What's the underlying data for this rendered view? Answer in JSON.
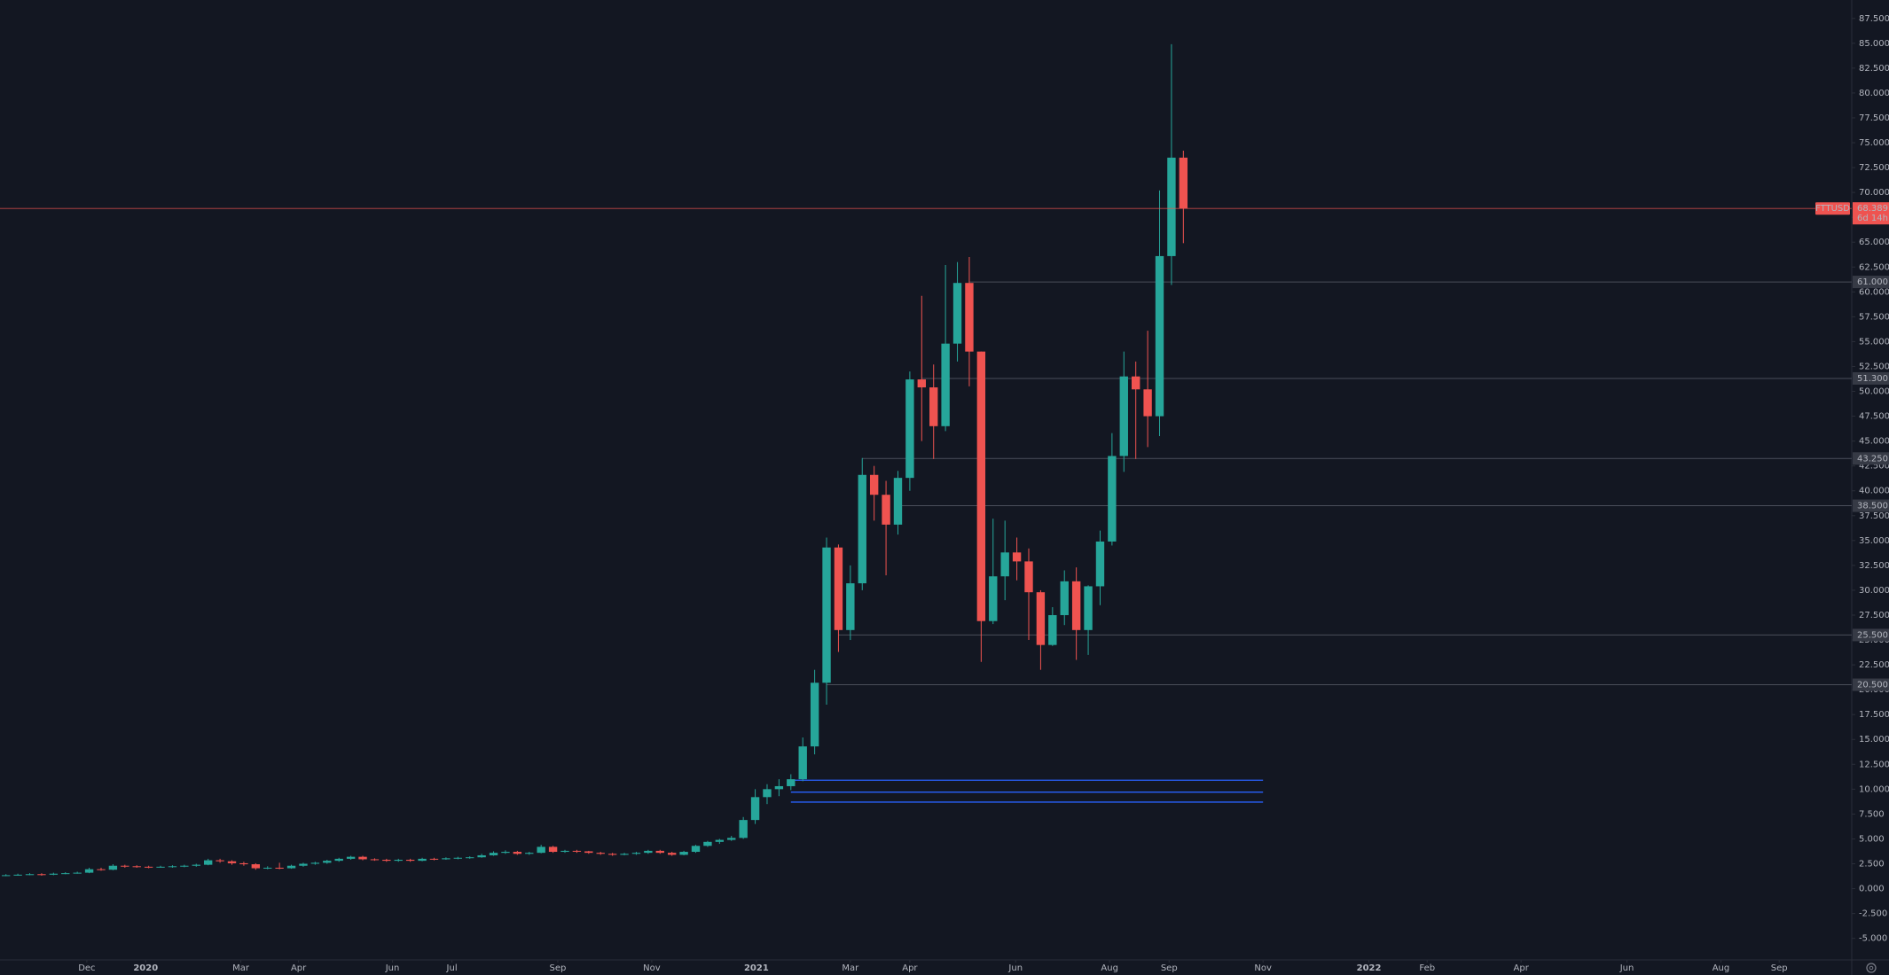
{
  "chart_data": {
    "type": "candlestick",
    "symbol": "FTTUSD",
    "x": [
      0,
      1,
      2,
      3,
      4,
      5,
      6,
      7,
      8,
      9,
      10,
      11,
      12,
      13,
      14,
      15,
      16,
      17,
      18,
      19,
      20,
      21,
      22,
      23,
      24,
      25,
      26,
      27,
      28,
      29,
      30,
      31,
      32,
      33,
      34,
      35,
      36,
      37,
      38,
      39,
      40,
      41,
      42,
      43,
      44,
      45,
      46,
      47,
      48,
      49,
      50,
      51,
      52,
      53,
      54,
      55,
      56,
      57,
      58,
      59,
      60,
      61,
      62,
      63,
      64,
      65,
      66,
      67,
      68,
      69,
      70,
      71,
      72,
      73,
      74,
      75,
      76,
      77,
      78,
      79,
      80,
      81,
      82,
      83,
      84,
      85,
      86,
      87,
      88,
      89,
      90,
      91,
      92,
      93,
      94,
      95,
      96,
      97,
      98,
      99
    ],
    "open": [
      1.3,
      1.35,
      1.4,
      1.45,
      1.4,
      1.5,
      1.55,
      1.6,
      1.95,
      1.9,
      2.3,
      2.25,
      2.2,
      2.15,
      2.2,
      2.25,
      2.3,
      2.4,
      2.85,
      2.75,
      2.55,
      2.45,
      2.05,
      2.1,
      2.05,
      2.3,
      2.5,
      2.6,
      2.8,
      3.0,
      3.2,
      2.95,
      2.9,
      2.8,
      2.9,
      2.8,
      3.0,
      2.95,
      3.05,
      3.1,
      3.15,
      3.35,
      3.6,
      3.7,
      3.5,
      3.6,
      4.2,
      3.7,
      3.8,
      3.75,
      3.6,
      3.5,
      3.4,
      3.5,
      3.6,
      3.8,
      3.6,
      3.4,
      3.7,
      4.3,
      4.7,
      4.9,
      5.1,
      6.9,
      9.2,
      10.0,
      10.3,
      11.0,
      14.3,
      20.7,
      34.3,
      26.0,
      30.7,
      41.6,
      39.6,
      36.6,
      41.3,
      51.2,
      50.4,
      46.5,
      54.8,
      60.9,
      54.0,
      26.9,
      31.4,
      33.8,
      32.9,
      29.8,
      24.5,
      27.5,
      30.9,
      26.0,
      30.4,
      34.9,
      43.5,
      51.5,
      50.2,
      47.5,
      63.6,
      73.5
    ],
    "high": [
      1.45,
      1.5,
      1.55,
      1.55,
      1.6,
      1.65,
      1.7,
      2.1,
      2.1,
      2.45,
      2.4,
      2.35,
      2.3,
      2.3,
      2.35,
      2.4,
      2.5,
      3.0,
      3.0,
      2.85,
      2.7,
      2.55,
      2.25,
      2.6,
      2.4,
      2.6,
      2.7,
      2.9,
      3.1,
      3.3,
      3.3,
      3.05,
      3.0,
      3.0,
      3.0,
      3.1,
      3.1,
      3.15,
      3.2,
      3.25,
      3.5,
      3.75,
      3.85,
      3.8,
      3.7,
      4.4,
      4.3,
      3.9,
      3.9,
      3.8,
      3.7,
      3.6,
      3.6,
      3.7,
      3.9,
      3.9,
      3.7,
      3.8,
      4.4,
      4.8,
      5.0,
      5.3,
      7.2,
      10.0,
      10.5,
      11.0,
      11.5,
      15.2,
      22.0,
      35.3,
      34.6,
      32.5,
      43.3,
      42.5,
      41.0,
      42.0,
      52.0,
      59.6,
      52.7,
      62.7,
      63.0,
      63.5,
      54.0,
      37.2,
      37.0,
      35.3,
      34.2,
      30.0,
      28.3,
      32.0,
      32.3,
      30.5,
      36.0,
      45.8,
      54.0,
      53.0,
      56.1,
      70.2,
      84.9,
      74.2
    ],
    "low": [
      1.25,
      1.3,
      1.35,
      1.3,
      1.35,
      1.45,
      1.5,
      1.55,
      1.8,
      1.85,
      2.1,
      2.1,
      2.05,
      2.1,
      2.1,
      2.15,
      2.2,
      2.35,
      2.6,
      2.4,
      2.3,
      1.9,
      1.95,
      1.95,
      2.0,
      2.2,
      2.4,
      2.5,
      2.7,
      2.9,
      2.85,
      2.8,
      2.7,
      2.7,
      2.7,
      2.75,
      2.85,
      2.9,
      2.95,
      3.0,
      3.1,
      3.3,
      3.5,
      3.4,
      3.4,
      3.55,
      3.6,
      3.6,
      3.6,
      3.5,
      3.4,
      3.3,
      3.35,
      3.4,
      3.5,
      3.5,
      3.3,
      3.35,
      3.6,
      4.2,
      4.5,
      4.8,
      5.0,
      6.5,
      8.5,
      9.3,
      9.9,
      10.8,
      13.5,
      18.5,
      23.8,
      25.0,
      30.0,
      37.0,
      31.5,
      35.6,
      40.0,
      45.0,
      43.2,
      46.0,
      53.0,
      50.5,
      22.8,
      26.6,
      29.0,
      31.0,
      25.0,
      22.0,
      24.4,
      26.5,
      23.0,
      23.5,
      28.5,
      34.5,
      41.9,
      43.2,
      44.4,
      45.5,
      60.7,
      64.9
    ],
    "close": [
      1.35,
      1.4,
      1.45,
      1.4,
      1.5,
      1.55,
      1.6,
      1.95,
      1.9,
      2.3,
      2.25,
      2.2,
      2.15,
      2.2,
      2.25,
      2.3,
      2.4,
      2.85,
      2.75,
      2.55,
      2.45,
      2.05,
      2.1,
      2.05,
      2.3,
      2.5,
      2.6,
      2.8,
      3.0,
      3.2,
      2.95,
      2.9,
      2.8,
      2.9,
      2.8,
      3.0,
      2.95,
      3.05,
      3.1,
      3.15,
      3.35,
      3.6,
      3.7,
      3.5,
      3.6,
      4.2,
      3.7,
      3.8,
      3.75,
      3.6,
      3.5,
      3.4,
      3.5,
      3.6,
      3.8,
      3.6,
      3.4,
      3.7,
      4.3,
      4.7,
      4.9,
      5.1,
      6.9,
      9.2,
      10.0,
      10.3,
      11.0,
      14.3,
      20.7,
      34.3,
      26.0,
      30.7,
      41.6,
      39.6,
      36.6,
      41.3,
      51.2,
      50.4,
      46.5,
      54.8,
      60.9,
      54.0,
      26.9,
      31.4,
      33.8,
      32.9,
      29.8,
      24.5,
      27.5,
      30.9,
      26.0,
      30.4,
      34.9,
      43.5,
      51.5,
      50.2,
      47.5,
      63.6,
      73.5,
      68.4
    ],
    "up_color": "#26a69a",
    "down_color": "#ef5350",
    "xlim": [
      -0.5,
      155.2
    ],
    "xticks": [
      {
        "value": 6.8,
        "label": "Dec"
      },
      {
        "value": 11.75,
        "label": "2020"
      },
      {
        "value": 19.75,
        "label": "Mar"
      },
      {
        "value": 24.6,
        "label": "Apr"
      },
      {
        "value": 32.5,
        "label": "Jun"
      },
      {
        "value": 37.5,
        "label": "Jul"
      },
      {
        "value": 46.4,
        "label": "Sep"
      },
      {
        "value": 54.3,
        "label": "Nov"
      },
      {
        "value": 63.1,
        "label": "2021"
      },
      {
        "value": 71.0,
        "label": "Mar"
      },
      {
        "value": 76.0,
        "label": "Apr"
      },
      {
        "value": 84.9,
        "label": "Jun"
      },
      {
        "value": 92.8,
        "label": "Aug"
      },
      {
        "value": 97.8,
        "label": "Sep"
      },
      {
        "value": 105.7,
        "label": "Nov"
      },
      {
        "value": 114.6,
        "label": "2022"
      },
      {
        "value": 119.5,
        "label": "Feb"
      },
      {
        "value": 127.4,
        "label": "Apr"
      },
      {
        "value": 136.3,
        "label": "Jun"
      },
      {
        "value": 144.2,
        "label": "Aug"
      },
      {
        "value": 149.1,
        "label": "Sep"
      }
    ],
    "ylim": [
      -7.17,
      89.35
    ],
    "yticks": [
      {
        "value": -5,
        "label": "-5.000"
      },
      {
        "value": -2.5,
        "label": "-2.500"
      },
      {
        "value": 0,
        "label": "0.000"
      },
      {
        "value": 2.5,
        "label": "2.500"
      },
      {
        "value": 5,
        "label": "5.000"
      },
      {
        "value": 7.5,
        "label": "7.500"
      },
      {
        "value": 10,
        "label": "10.000"
      },
      {
        "value": 12.5,
        "label": "12.500"
      },
      {
        "value": 15,
        "label": "15.000"
      },
      {
        "value": 17.5,
        "label": "17.500"
      },
      {
        "value": 20,
        "label": "20.000"
      },
      {
        "value": 22.5,
        "label": "22.500"
      },
      {
        "value": 25,
        "label": "25.000"
      },
      {
        "value": 27.5,
        "label": "27.500"
      },
      {
        "value": 30,
        "label": "30.000"
      },
      {
        "value": 32.5,
        "label": "32.500"
      },
      {
        "value": 35,
        "label": "35.000"
      },
      {
        "value": 37.5,
        "label": "37.500"
      },
      {
        "value": 40,
        "label": "40.000"
      },
      {
        "value": 42.5,
        "label": "42.500"
      },
      {
        "value": 45,
        "label": "45.000"
      },
      {
        "value": 47.5,
        "label": "47.500"
      },
      {
        "value": 50,
        "label": "50.000"
      },
      {
        "value": 52.5,
        "label": "52.500"
      },
      {
        "value": 55,
        "label": "55.000"
      },
      {
        "value": 57.5,
        "label": "57.500"
      },
      {
        "value": 60,
        "label": "60.000"
      },
      {
        "value": 62.5,
        "label": "62.500"
      },
      {
        "value": 65,
        "label": "65.000"
      },
      {
        "value": 67.5,
        "label": "67.500"
      },
      {
        "value": 70,
        "label": "70.000"
      },
      {
        "value": 72.5,
        "label": "72.500"
      },
      {
        "value": 75,
        "label": "75.000"
      },
      {
        "value": 77.5,
        "label": "77.500"
      },
      {
        "value": 80,
        "label": "80.000"
      },
      {
        "value": 82.5,
        "label": "82.500"
      },
      {
        "value": 85,
        "label": "85.000"
      },
      {
        "value": 87.5,
        "label": "87.500"
      }
    ],
    "levels": [
      {
        "value": 61,
        "label": "61.000",
        "x_start": 81
      },
      {
        "value": 51.3,
        "label": "51.300",
        "x_start": 77
      },
      {
        "value": 43.25,
        "label": "43.250",
        "x_start": 72
      },
      {
        "value": 38.5,
        "label": "38.500",
        "x_start": 75
      },
      {
        "value": 25.5,
        "label": "25.500",
        "x_start": 70
      },
      {
        "value": 20.5,
        "label": "20.500",
        "x_start": 69
      }
    ],
    "level_color": "#4a4e5a",
    "lines": [
      {
        "value": 10.9,
        "x_start": 66,
        "x_end": 105.7
      },
      {
        "value": 9.7,
        "x_start": 66,
        "x_end": 105.7
      },
      {
        "value": 8.7,
        "x_start": 66,
        "x_end": 105.7
      }
    ],
    "line_color": "#2962ff",
    "last_price": {
      "value": 68.389,
      "label": "68.389",
      "countdown": "6d 14h"
    }
  }
}
